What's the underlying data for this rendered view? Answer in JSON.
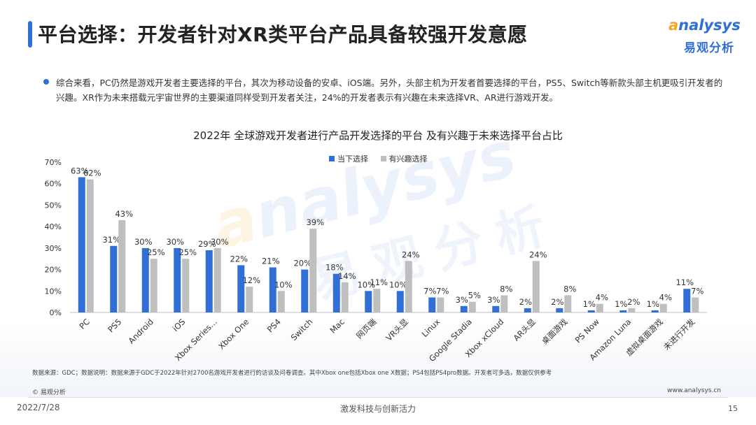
{
  "header": {
    "title": "平台选择：开发者针对XR类平台产品具备较强开发意愿",
    "logo_en_first": "a",
    "logo_en_rest": "nalysys",
    "logo_cn": "易观分析"
  },
  "summary": {
    "text": "综合来看，PC仍然是游戏开发者主要选择的平台，其次为移动设备的安卓、iOS端。另外，头部主机为开发者首要选择的平台，PS5、Switch等新款头部主机更吸引开发者的兴趣。XR作为未来搭载元宇宙世界的主要渠道同样受到开发者关注，24%的开发者表示有兴趣在未来选择VR、AR进行游戏开发。"
  },
  "chart_data": {
    "type": "bar",
    "title": "2022年 全球游戏开发者进行产品开发选择的平台 及有兴趣于未来选择平台占比",
    "categories": [
      "PC",
      "PS5",
      "Android",
      "iOS",
      "Xbox Series…",
      "Xbox One",
      "PS4",
      "Switch",
      "Mac",
      "网页端",
      "VR头显",
      "Linux",
      "Google Stadia",
      "Xbox xCloud",
      "AR头显",
      "桌面游戏",
      "PS Now",
      "Amazon Luna",
      "虚拟桌面游戏",
      "未进行开发"
    ],
    "series": [
      {
        "name": "当下选择",
        "color": "#2f6fd6",
        "values": [
          63,
          31,
          30,
          30,
          29,
          22,
          21,
          20,
          18,
          10,
          10,
          7,
          3,
          3,
          2,
          2,
          1,
          1,
          1,
          11
        ]
      },
      {
        "name": "有兴趣选择",
        "color": "#bfbfbf",
        "values": [
          62,
          43,
          25,
          25,
          30,
          12,
          10,
          39,
          14,
          11,
          24,
          7,
          5,
          8,
          24,
          8,
          4,
          2,
          4,
          7
        ]
      }
    ],
    "y_ticks": [
      "0%",
      "10%",
      "20%",
      "30%",
      "40%",
      "50%",
      "60%",
      "70%"
    ],
    "ylim": [
      0,
      70
    ],
    "grid": false,
    "legend_position": "top-center",
    "value_suffix": "%"
  },
  "watermark": {
    "en_first": "a",
    "en_rest": "nalysys",
    "cn": "易观分析"
  },
  "footer": {
    "source": "数据来源：GDC；数据说明：数据来源于GDC于2022年针对2700名游戏开发者进行的访谈及问卷调查。其中Xbox one包括Xbox one X数据；PS4包括PS4pro数据。开发者可多选，数据仅供参考",
    "copyright": "© 易观分析",
    "website": "www.analysys.cn",
    "date": "2022/7/28",
    "slogan": "激发科技与创新活力",
    "page_number": "15"
  }
}
